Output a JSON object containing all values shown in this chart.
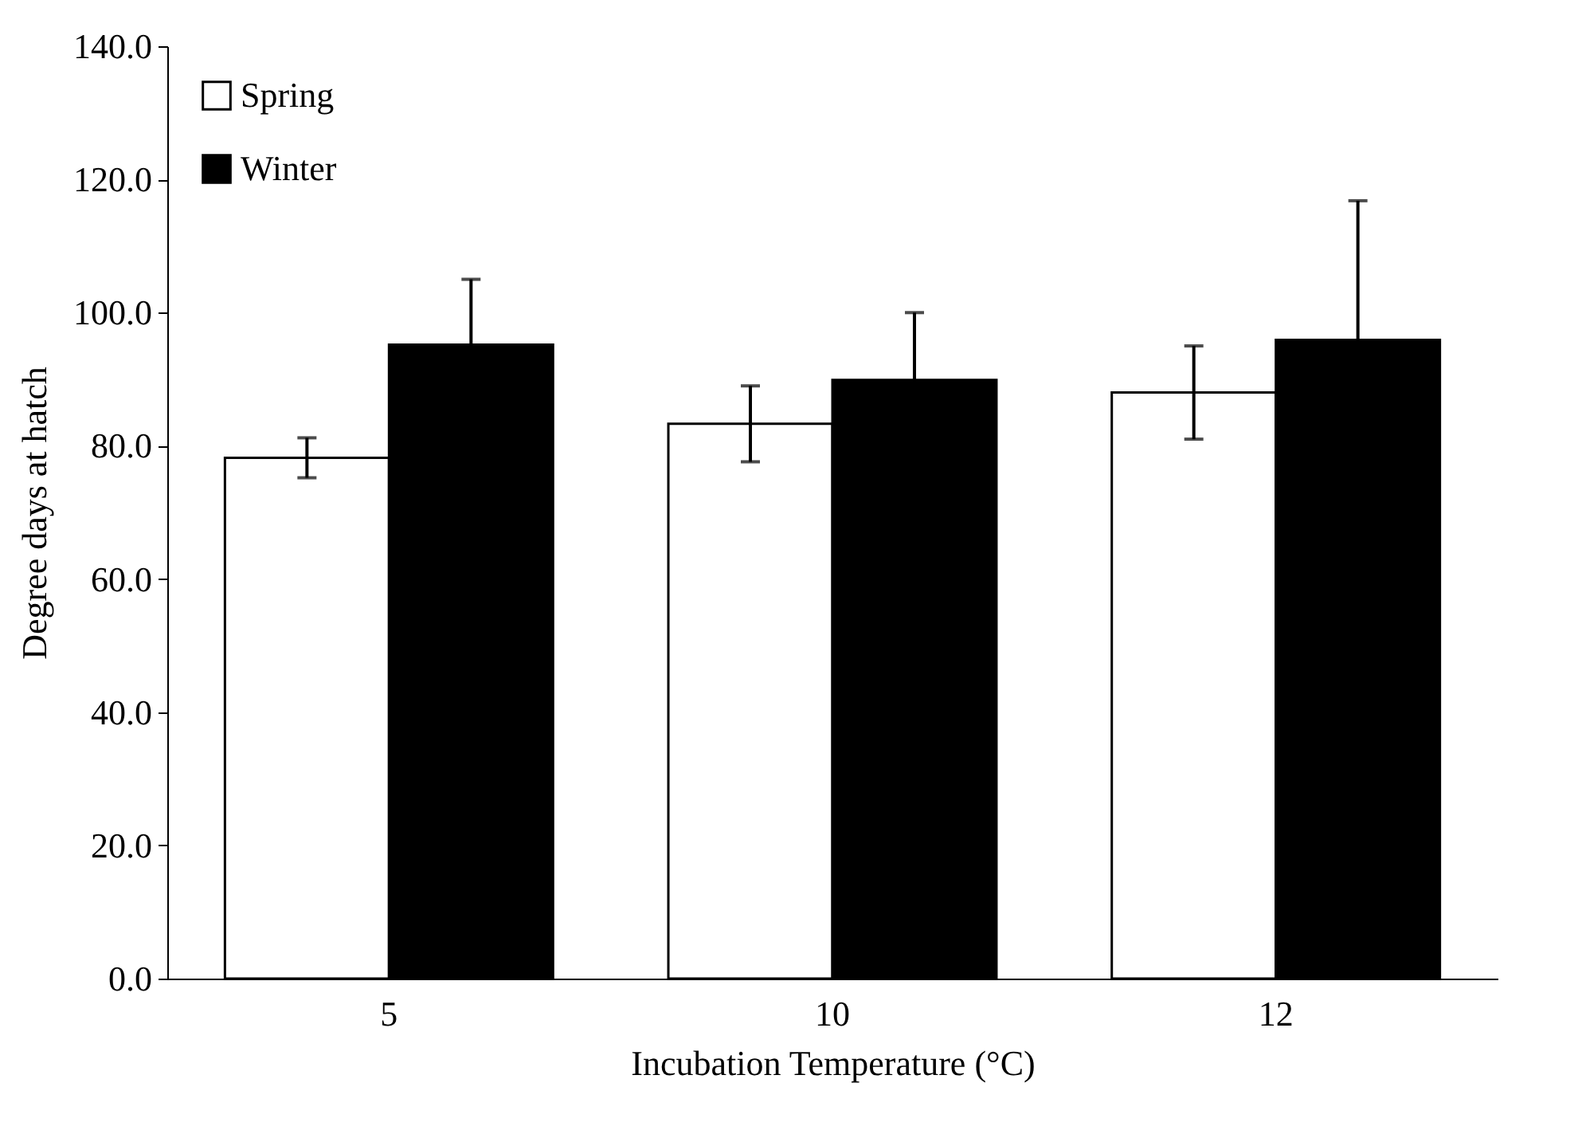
{
  "chart_data": {
    "type": "bar",
    "xlabel": "Incubation Temperature (°C)",
    "ylabel": "Degree days at hatch",
    "categories": [
      "5",
      "10",
      "12"
    ],
    "series": [
      {
        "name": "Spring",
        "color": "#ffffff",
        "values": [
          78.2,
          83.3,
          88.0
        ],
        "errors": [
          3.0,
          5.7,
          7.0
        ]
      },
      {
        "name": "Winter",
        "color": "#000000",
        "values": [
          95.2,
          89.9,
          95.9
        ],
        "errors": [
          9.8,
          10.1,
          20.9
        ]
      }
    ],
    "ylim": [
      0,
      140
    ],
    "yticks": [
      {
        "value": 0,
        "label": "0.0"
      },
      {
        "value": 20,
        "label": "20.0"
      },
      {
        "value": 40,
        "label": "40.0"
      },
      {
        "value": 60,
        "label": "60.0"
      },
      {
        "value": 80,
        "label": "80.0"
      },
      {
        "value": 100,
        "label": "100.0"
      },
      {
        "value": 120,
        "label": "120.0"
      },
      {
        "value": 140,
        "label": "140.0"
      }
    ],
    "grid": false,
    "legend": "top left"
  }
}
